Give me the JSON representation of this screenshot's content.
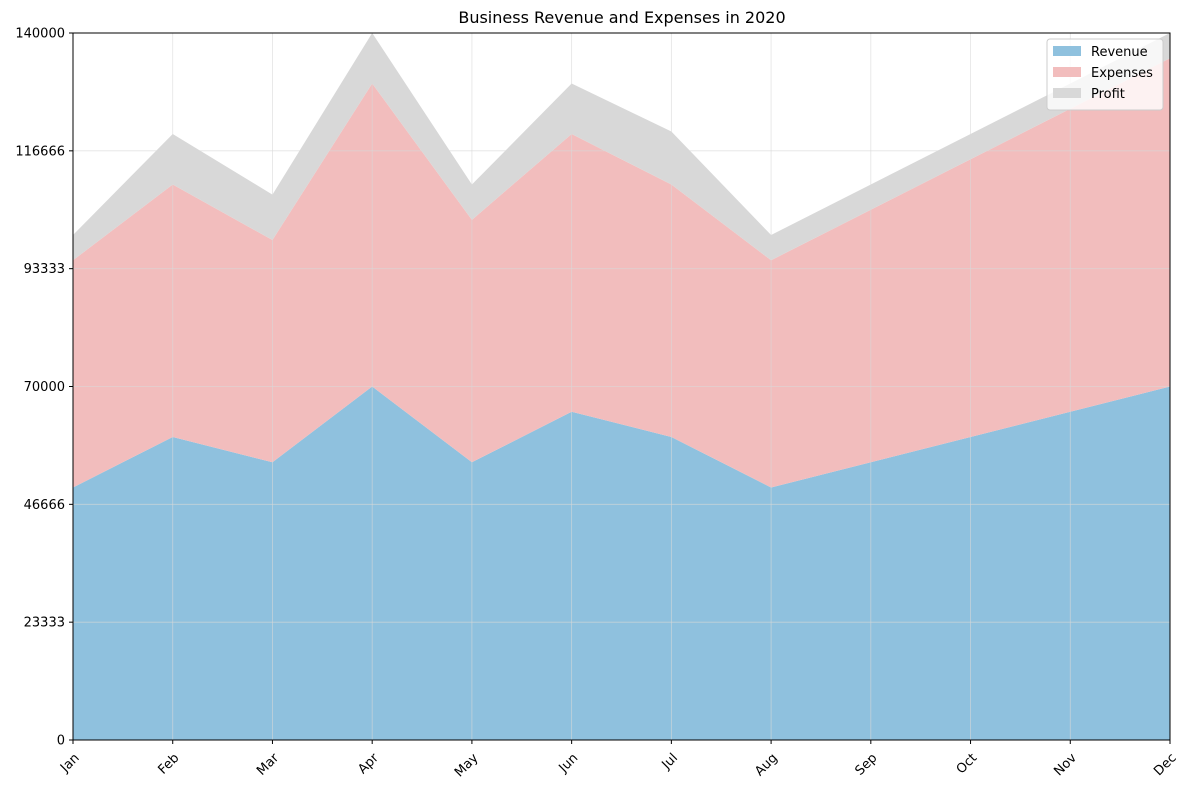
{
  "chart_data": {
    "type": "area",
    "stacked": true,
    "title": "Business Revenue and Expenses in 2020",
    "xlabel": "",
    "ylabel": "",
    "categories": [
      "Jan",
      "Feb",
      "Mar",
      "Apr",
      "May",
      "Jun",
      "Jul",
      "Aug",
      "Sep",
      "Oct",
      "Nov",
      "Dec"
    ],
    "ylim": [
      0,
      140000
    ],
    "yticks": [
      "0",
      "23333",
      "46666",
      "70000",
      "93333",
      "116666",
      "140000"
    ],
    "grid": true,
    "legend_position": "top-right",
    "series": [
      {
        "name": "Revenue",
        "color": "#8fc1de",
        "values": [
          50000,
          60000,
          55000,
          70000,
          55000,
          65000,
          60000,
          50000,
          55000,
          60000,
          65000,
          70000
        ]
      },
      {
        "name": "Expenses",
        "color": "#f2bdbd",
        "values": [
          45000,
          50000,
          44000,
          60000,
          48000,
          55000,
          50000,
          45000,
          50000,
          55000,
          60000,
          65000
        ]
      },
      {
        "name": "Profit",
        "color": "#d8d8d8",
        "values": [
          5000,
          10000,
          9000,
          10000,
          7000,
          10000,
          10500,
          5000,
          5000,
          5000,
          5000,
          5000
        ]
      }
    ]
  }
}
